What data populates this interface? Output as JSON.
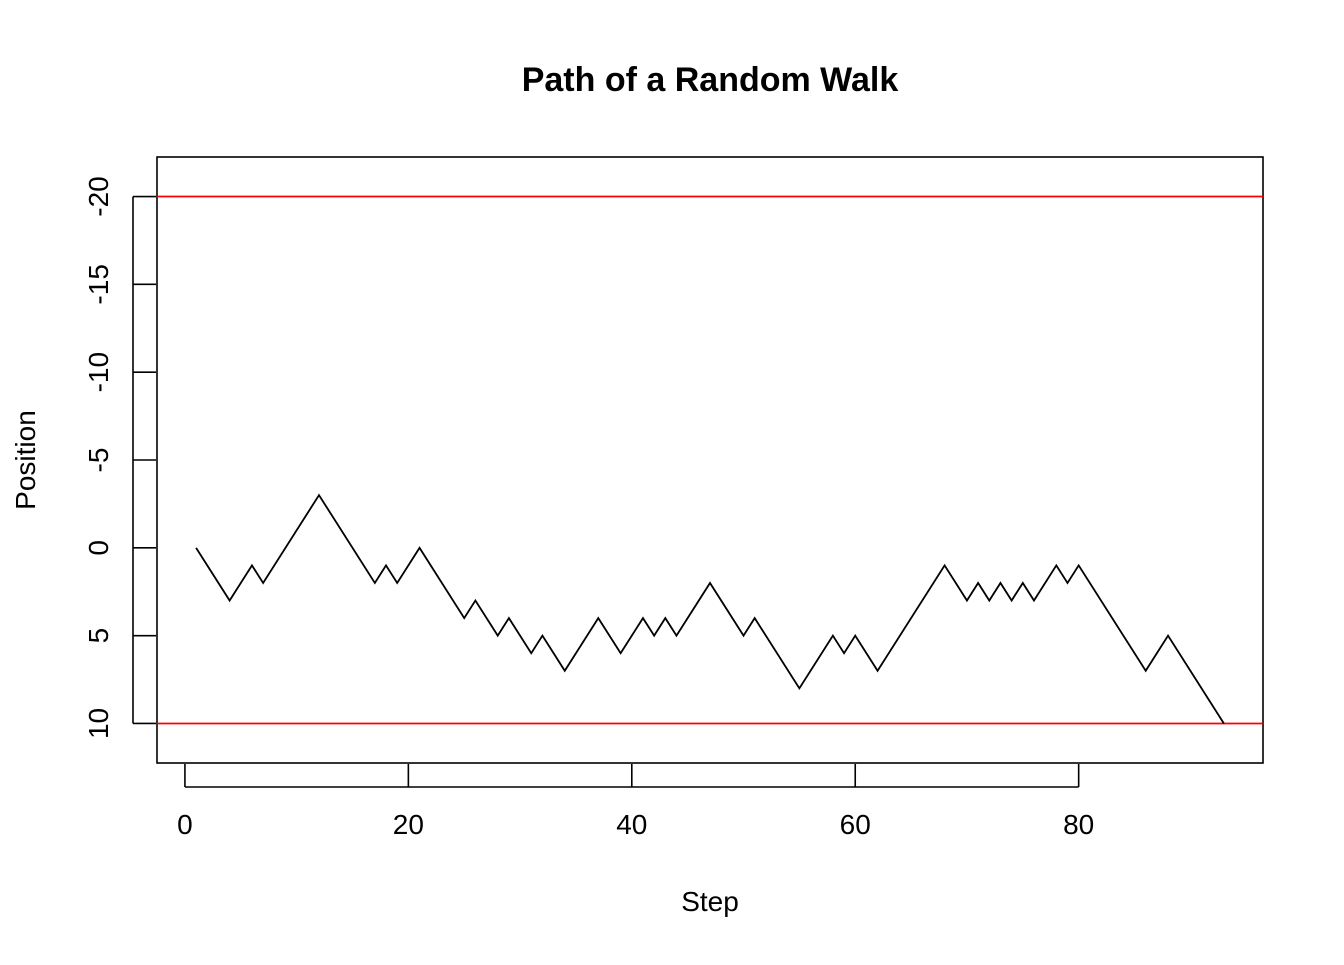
{
  "chart_data": {
    "type": "line",
    "title": "Path of a Random Walk",
    "xlabel": "Step",
    "ylabel": "Position",
    "xlim": [
      -2.5,
      96.5
    ],
    "ylim": [
      12.25,
      -22.25
    ],
    "y_axis_reversed": true,
    "x_ticks": [
      0,
      20,
      40,
      60,
      80
    ],
    "x_tick_labels": [
      "0",
      "20",
      "40",
      "60",
      "80"
    ],
    "y_ticks": [
      10,
      5,
      0,
      -5,
      -10,
      -15,
      -20
    ],
    "y_tick_labels": [
      "10",
      "5",
      "0",
      "-5",
      "-10",
      "-15",
      "-20"
    ],
    "grid": false,
    "colors": {
      "line": "#000000",
      "reference_lines": "#ff0000",
      "axes": "#000000"
    },
    "reference_lines": [
      {
        "orientation": "horizontal",
        "y": -20,
        "color": "#ff0000"
      },
      {
        "orientation": "horizontal",
        "y": 10,
        "color": "#ff0000"
      }
    ],
    "series": [
      {
        "x": [
          1,
          4,
          6,
          7,
          12,
          17,
          18,
          19,
          21,
          25,
          26,
          28,
          29,
          31,
          32,
          34,
          37,
          39,
          41,
          42,
          43,
          44,
          47,
          50,
          51,
          55,
          58,
          59,
          60,
          62,
          68,
          70,
          71,
          72,
          73,
          74,
          75,
          76,
          78,
          79,
          80,
          86,
          88,
          93
        ],
        "y": [
          0,
          3,
          1,
          2,
          -3,
          2,
          1,
          2,
          0,
          4,
          3,
          5,
          4,
          6,
          5,
          7,
          4,
          6,
          4,
          5,
          4,
          5,
          2,
          5,
          4,
          8,
          5,
          6,
          5,
          7,
          1,
          3,
          2,
          3,
          2,
          3,
          2,
          3,
          1,
          2,
          1,
          7,
          5,
          10
        ]
      }
    ]
  }
}
